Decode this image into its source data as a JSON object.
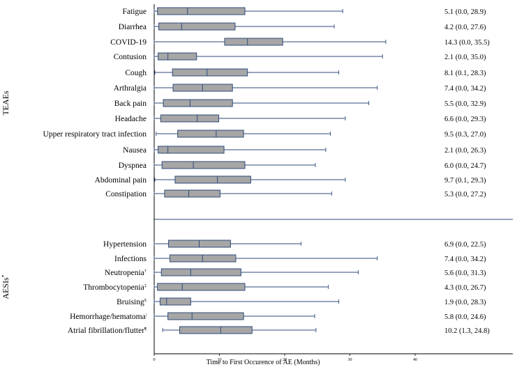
{
  "chart_data": {
    "type": "boxplot",
    "xlabel": "Time to First Occurence of AE (Months)",
    "xlim": [
      0,
      55
    ],
    "xticks": [
      "0",
      "10",
      "20",
      "30",
      "40"
    ],
    "colors": {
      "box_fill": "#a6a6a6",
      "line": "#2e4a7a",
      "median": "#2e4a7a"
    },
    "groups": [
      {
        "name": "TEAEs",
        "items": [
          {
            "label": "Fatigue",
            "min": 0.0,
            "q1": 0.5,
            "median": 5.1,
            "q3": 13.9,
            "max": 28.9,
            "summary": "5.1 (0.0, 28.9)"
          },
          {
            "label": "Diarrhea",
            "min": 0.0,
            "q1": 0.7,
            "median": 4.2,
            "q3": 12.4,
            "max": 27.6,
            "summary": "4.2 (0.0, 27.6)"
          },
          {
            "label": "COVID-19",
            "min": 0.0,
            "q1": 10.8,
            "median": 14.3,
            "q3": 19.7,
            "max": 35.5,
            "summary": "14.3 (0.0, 35.5)"
          },
          {
            "label": "Contusion",
            "min": 0.0,
            "q1": 0.6,
            "median": 2.1,
            "q3": 6.5,
            "max": 35.0,
            "summary": "2.1 (0.0, 35.0)"
          },
          {
            "label": "Cough",
            "min": 0.1,
            "q1": 2.8,
            "median": 8.1,
            "q3": 14.3,
            "max": 28.3,
            "summary": "8.1 (0.1, 28.3)"
          },
          {
            "label": "Arthralgia",
            "min": 0.0,
            "q1": 2.9,
            "median": 7.4,
            "q3": 12.0,
            "max": 34.2,
            "summary": "7.4 (0.0, 34.2)"
          },
          {
            "label": "Back pain",
            "min": 0.0,
            "q1": 1.4,
            "median": 5.5,
            "q3": 12.0,
            "max": 32.9,
            "summary": "5.5 (0.0, 32.9)"
          },
          {
            "label": "Headache",
            "min": 0.0,
            "q1": 1.0,
            "median": 6.6,
            "q3": 9.9,
            "max": 29.3,
            "summary": "6.6 (0.0, 29.3)"
          },
          {
            "label": "Upper respiratory tract infection",
            "min": 0.3,
            "q1": 3.6,
            "median": 9.5,
            "q3": 13.7,
            "max": 27.0,
            "summary": "9.5 (0.3, 27.0)"
          },
          {
            "label": "Nausea",
            "min": 0.0,
            "q1": 0.6,
            "median": 2.1,
            "q3": 10.7,
            "max": 26.3,
            "summary": "2.1 (0.0, 26.3)"
          },
          {
            "label": "Dyspnea",
            "min": 0.0,
            "q1": 1.2,
            "median": 6.0,
            "q3": 13.9,
            "max": 24.7,
            "summary": "6.0 (0.0, 24.7)"
          },
          {
            "label": "Abdominal pain",
            "min": 0.1,
            "q1": 3.2,
            "median": 9.7,
            "q3": 14.8,
            "max": 29.3,
            "summary": "9.7 (0.1, 29.3)"
          },
          {
            "label": "Constipation",
            "min": 0.0,
            "q1": 1.6,
            "median": 5.3,
            "q3": 10.1,
            "max": 27.2,
            "summary": "5.3 (0.0, 27.2)"
          }
        ]
      },
      {
        "name": "AESIs",
        "name_mark": "*",
        "items": [
          {
            "label": "Hypertension",
            "mark": "",
            "min": 0.0,
            "q1": 2.2,
            "median": 6.9,
            "q3": 11.7,
            "max": 22.5,
            "summary": "6.9 (0.0, 22.5)"
          },
          {
            "label": "Infections",
            "mark": "",
            "min": 0.0,
            "q1": 2.4,
            "median": 7.4,
            "q3": 12.5,
            "max": 34.2,
            "summary": "7.4 (0.0, 34.2)"
          },
          {
            "label": "Neutropenia",
            "mark": "†",
            "min": 0.0,
            "q1": 1.1,
            "median": 5.6,
            "q3": 13.3,
            "max": 31.3,
            "summary": "5.6 (0.0, 31.3)"
          },
          {
            "label": "Thrombocytopenia",
            "mark": "‡",
            "min": 0.0,
            "q1": 0.5,
            "median": 4.3,
            "q3": 13.9,
            "max": 26.7,
            "summary": "4.3 (0.0, 26.7)"
          },
          {
            "label": "Bruising",
            "mark": "§",
            "min": 0.0,
            "q1": 0.9,
            "median": 1.9,
            "q3": 5.6,
            "max": 28.3,
            "summary": "1.9 (0.0, 28.3)"
          },
          {
            "label": "Hemorrhage/hematoma",
            "mark": "|",
            "min": 0.0,
            "q1": 2.1,
            "median": 5.8,
            "q3": 13.7,
            "max": 24.6,
            "summary": "5.8 (0.0, 24.6)"
          },
          {
            "label": "Atrial fibrillation/flutter",
            "mark": "¶",
            "min": 1.3,
            "q1": 3.9,
            "median": 10.2,
            "q3": 15.0,
            "max": 24.8,
            "summary": "10.2 (1.3, 24.8)"
          }
        ]
      }
    ]
  }
}
